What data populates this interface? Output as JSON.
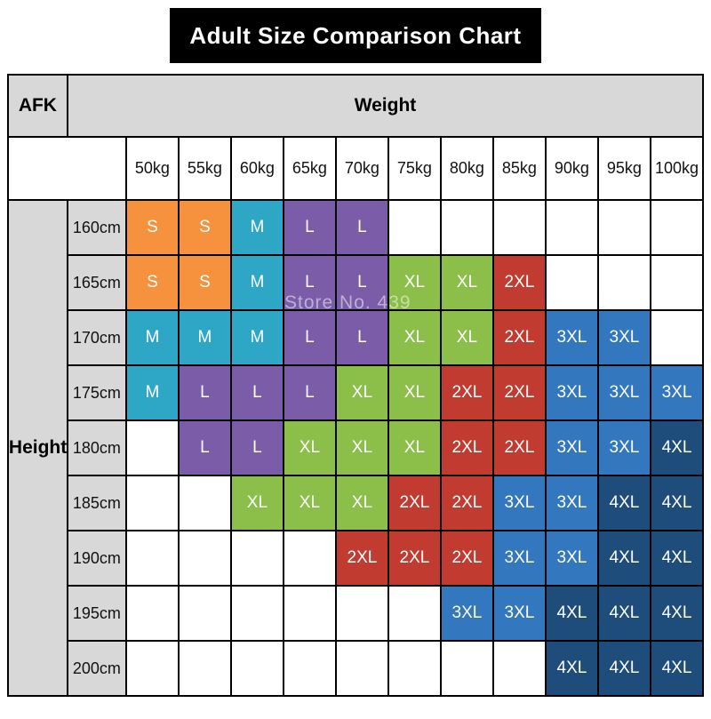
{
  "title": "Adult Size Comparison Chart",
  "corner_label": "AFK",
  "watermark": "Store No. 439",
  "chart_data": {
    "type": "table",
    "title": "Adult Size Comparison Chart",
    "xlabel": "Weight",
    "ylabel": "Height",
    "columns": [
      "50kg",
      "55kg",
      "60kg",
      "65kg",
      "70kg",
      "75kg",
      "80kg",
      "85kg",
      "90kg",
      "95kg",
      "100kg"
    ],
    "rows": [
      "160cm",
      "165cm",
      "170cm",
      "175cm",
      "180cm",
      "185cm",
      "190cm",
      "195cm",
      "200cm"
    ],
    "grid": [
      [
        "S",
        "S",
        "M",
        "L",
        "L",
        "",
        "",
        "",
        "",
        "",
        ""
      ],
      [
        "S",
        "S",
        "M",
        "L",
        "L",
        "XL",
        "XL",
        "2XL",
        "",
        "",
        ""
      ],
      [
        "M",
        "M",
        "M",
        "L",
        "L",
        "XL",
        "XL",
        "2XL",
        "3XL",
        "3XL",
        ""
      ],
      [
        "M",
        "L",
        "L",
        "L",
        "XL",
        "XL",
        "2XL",
        "2XL",
        "3XL",
        "3XL",
        "3XL"
      ],
      [
        "",
        "L",
        "L",
        "XL",
        "XL",
        "XL",
        "2XL",
        "2XL",
        "3XL",
        "3XL",
        "4XL"
      ],
      [
        "",
        "",
        "XL",
        "XL",
        "XL",
        "2XL",
        "2XL",
        "3XL",
        "3XL",
        "4XL",
        "4XL"
      ],
      [
        "",
        "",
        "",
        "",
        "2XL",
        "2XL",
        "2XL",
        "3XL",
        "3XL",
        "4XL",
        "4XL"
      ],
      [
        "",
        "",
        "",
        "",
        "",
        "",
        "3XL",
        "3XL",
        "4XL",
        "4XL",
        "4XL"
      ],
      [
        "",
        "",
        "",
        "",
        "",
        "",
        "",
        "",
        "4XL",
        "4XL",
        "4XL"
      ]
    ],
    "size_colors": {
      "S": "#F6913D",
      "M": "#2EA7C6",
      "L": "#7A5CA8",
      "XL": "#8CBE4A",
      "2XL": "#C13B31",
      "3XL": "#3377BE",
      "4XL": "#1E4D7B"
    },
    "header_bg": "#d8d8d8"
  }
}
